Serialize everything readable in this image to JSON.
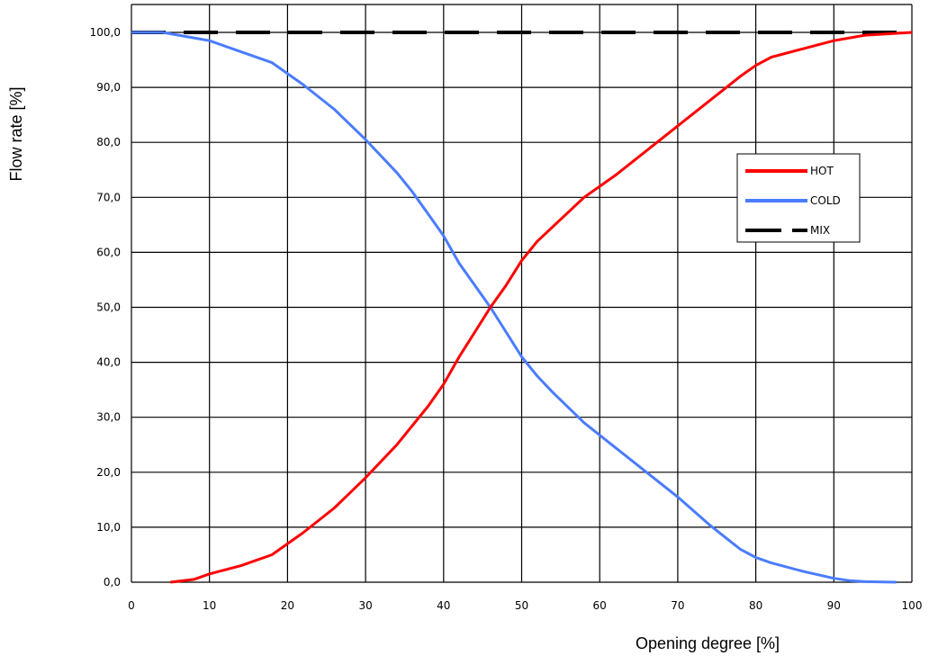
{
  "chart_data": {
    "type": "line",
    "xlabel": "Opening degree [%]",
    "ylabel": "Flow rate [%]",
    "xlim": [
      0,
      100
    ],
    "ylim": [
      0,
      100
    ],
    "x_ticks": [
      "0",
      "10",
      "20",
      "30",
      "40",
      "50",
      "60",
      "70",
      "80",
      "90",
      "100"
    ],
    "y_ticks": [
      "0,0",
      "10,0",
      "20,0",
      "30,0",
      "40,0",
      "50,0",
      "60,0",
      "70,0",
      "80,0",
      "90,0",
      "100,0"
    ],
    "grid": true,
    "legend_position": "right",
    "series": [
      {
        "name": "HOT",
        "color": "#ff0000",
        "style": "solid",
        "x": [
          5,
          8,
          10,
          14,
          18,
          22,
          26,
          30,
          34,
          38,
          40,
          42,
          44,
          46,
          48,
          50,
          52,
          55,
          58,
          62,
          66,
          70,
          74,
          78,
          80,
          82,
          86,
          90,
          94,
          100
        ],
        "y": [
          0,
          0.5,
          1.5,
          3,
          5,
          9,
          13.5,
          19,
          25,
          32,
          36,
          41,
          45.5,
          50,
          54,
          58.5,
          62,
          66,
          70,
          74,
          78.5,
          83,
          87.5,
          92,
          94,
          95.5,
          97,
          98.5,
          99.5,
          100
        ]
      },
      {
        "name": "COLD",
        "color": "#4a7cff",
        "style": "solid",
        "x": [
          0,
          4,
          8,
          10,
          14,
          18,
          22,
          26,
          30,
          34,
          36,
          38,
          40,
          42,
          44,
          46,
          48,
          50,
          52,
          54,
          58,
          62,
          66,
          70,
          74,
          78,
          80,
          82,
          86,
          90,
          92,
          94,
          98
        ],
        "y": [
          100,
          100,
          99,
          98.5,
          96.5,
          94.5,
          90.5,
          86,
          80.5,
          74.5,
          71,
          67,
          63,
          58,
          54,
          50,
          45.5,
          41,
          37.5,
          34.5,
          29,
          24.5,
          20,
          15.5,
          10.5,
          6,
          4.5,
          3.5,
          2,
          0.7,
          0.3,
          0.1,
          0
        ]
      },
      {
        "name": "MIX",
        "color": "#000000",
        "style": "dashed",
        "x": [
          0,
          100
        ],
        "y": [
          100,
          100
        ]
      }
    ]
  }
}
